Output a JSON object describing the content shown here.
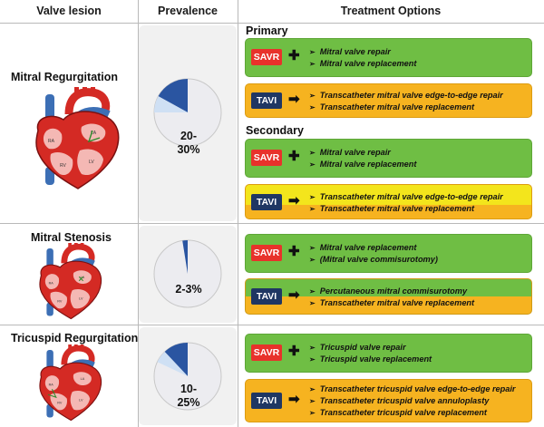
{
  "headers": {
    "lesion": "Valve lesion",
    "prevalence": "Prevalence",
    "treatment": "Treatment Options"
  },
  "colors": {
    "green": "#6fbe44",
    "orange": "#f6b320",
    "yellow": "#f3e51c",
    "savr_red": "#e8322b",
    "tavi_navy": "#1f3763",
    "pie_dark": "#2a55a1",
    "pie_light": "#cfe0f4"
  },
  "operators": {
    "plus": "✚",
    "arrow": "➡"
  },
  "rows": [
    {
      "lesion": "Mitral Regurgitation",
      "prevalence_label": "20-\n30%",
      "pie": {
        "dark_fraction": 0.17,
        "light_fraction": 0.08
      },
      "primary_title": "Primary",
      "secondary_title": "Secondary",
      "primary": [
        {
          "badge": "SAVR",
          "items": [
            "Mitral valve repair",
            "Mitral valve replacement"
          ]
        },
        {
          "badge": "TAVI",
          "items": [
            "Transcatheter mitral valve edge-to-edge repair",
            "Transcatheter mitral valve replacement"
          ]
        }
      ],
      "secondary": [
        {
          "badge": "SAVR",
          "items": [
            "Mitral valve repair",
            "Mitral valve replacement"
          ]
        },
        {
          "badge": "TAVI",
          "items": [
            "Transcatheter mitral valve edge-to-edge repair",
            "Transcatheter mitral valve replacement"
          ]
        }
      ]
    },
    {
      "lesion": "Mitral Stenosis",
      "prevalence_label": "2-3%",
      "pie": {
        "dark_fraction": 0.025,
        "light_fraction": 0.0
      },
      "options": [
        {
          "badge": "SAVR",
          "items": [
            "Mitral valve replacement",
            "(Mitral valve commisurotomy)"
          ]
        },
        {
          "badge": "TAVI",
          "items": [
            "Percutaneous mitral commisurotomy",
            "Transcatheter mitral valve replacement"
          ]
        }
      ]
    },
    {
      "lesion": "Tricuspid Regurgitation",
      "prevalence_label": "10-\n25%",
      "pie": {
        "dark_fraction": 0.12,
        "light_fraction": 0.06
      },
      "options": [
        {
          "badge": "SAVR",
          "items": [
            "Tricuspid valve repair",
            "Tricuspid valve replacement"
          ]
        },
        {
          "badge": "TAVI",
          "items": [
            "Transcatheter tricuspid valve edge-to-edge repair",
            "Transcatheter tricuspid valve annuloplasty",
            "Transcatheter tricuspid valve replacement"
          ]
        }
      ]
    }
  ]
}
